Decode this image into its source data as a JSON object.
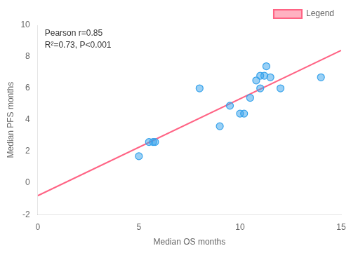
{
  "chart_data": {
    "type": "scatter",
    "xlabel": "Median OS months",
    "ylabel": "Median PFS months",
    "annotations": [
      "Pearson r=0.85",
      "R²=0.73, P<0.001"
    ],
    "series": [
      {
        "type": "scatter",
        "x": [
          5.0,
          5.5,
          5.7,
          5.8,
          8.0,
          9.0,
          9.5,
          10.0,
          10.2,
          10.5,
          10.8,
          11.0,
          11.0,
          11.2,
          11.3,
          11.5,
          12.0,
          14.0
        ],
        "values": [
          1.7,
          2.6,
          2.6,
          2.6,
          6.0,
          3.6,
          4.9,
          4.4,
          4.4,
          5.4,
          6.5,
          6.0,
          6.8,
          6.8,
          7.4,
          6.7,
          6.0,
          6.7
        ]
      },
      {
        "type": "line",
        "name": "Legend",
        "x": [
          0,
          15
        ],
        "values": [
          -0.80247,
          8.40199
        ]
      }
    ],
    "xlim": [
      0,
      15
    ],
    "ylim": [
      -2,
      10
    ],
    "xticks": [
      0,
      5,
      10,
      15
    ],
    "yticks": [
      -2,
      0,
      2,
      4,
      6,
      8,
      10
    ],
    "grid": false,
    "legend": "upper right"
  }
}
